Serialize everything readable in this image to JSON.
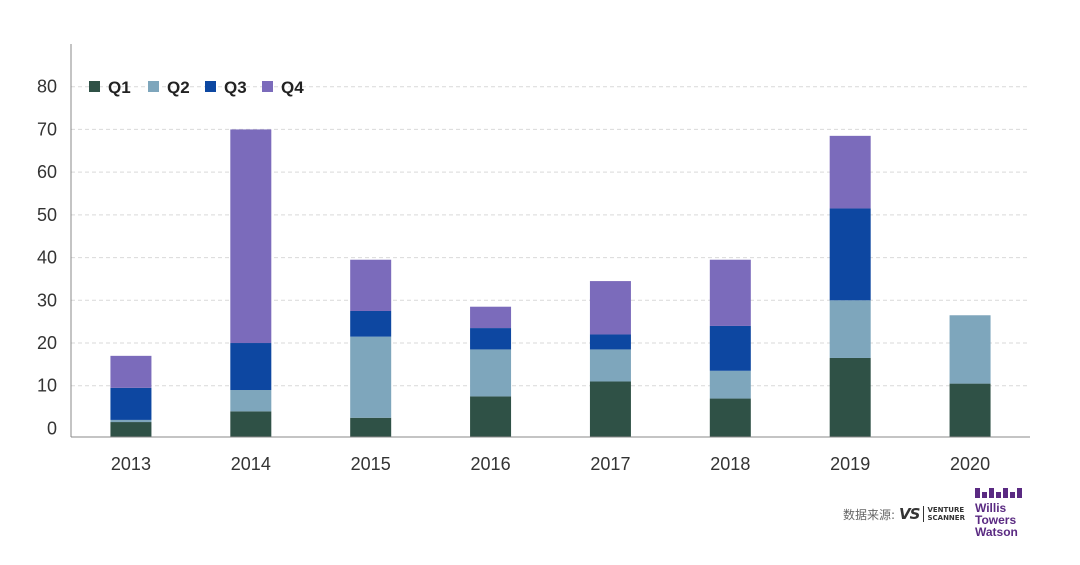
{
  "chart_data": {
    "type": "bar",
    "stacked": true,
    "categories": [
      "2013",
      "2014",
      "2015",
      "2016",
      "2017",
      "2018",
      "2019",
      "2020"
    ],
    "series": [
      {
        "name": "Q1",
        "color": "#2f5146",
        "values": [
          1.5,
          4,
          2.5,
          7.5,
          11,
          7,
          16.5,
          10.5
        ]
      },
      {
        "name": "Q2",
        "color": "#7ea6bc",
        "values": [
          0.5,
          5,
          19,
          11,
          7.5,
          6.5,
          13.5,
          16
        ]
      },
      {
        "name": "Q3",
        "color": "#0d47a1",
        "values": [
          7.5,
          11,
          6,
          5,
          3.5,
          10.5,
          21.5,
          0
        ]
      },
      {
        "name": "Q4",
        "color": "#7b6bbb",
        "values": [
          7.5,
          50,
          12,
          5,
          12.5,
          15.5,
          17,
          0
        ]
      }
    ],
    "yticks": [
      0,
      10,
      20,
      30,
      40,
      50,
      60,
      70,
      80
    ],
    "ylim": [
      -2,
      90
    ],
    "grid": true,
    "legend_position": "top-left",
    "title": "",
    "xlabel": "",
    "ylabel": ""
  },
  "source": {
    "label": "数据来源:",
    "logo_mark": "VS",
    "logo_line1": "VENTURE",
    "logo_line2": "SCANNER"
  },
  "brand": {
    "line1": "Willis",
    "line2": "Towers",
    "line3": "Watson"
  }
}
